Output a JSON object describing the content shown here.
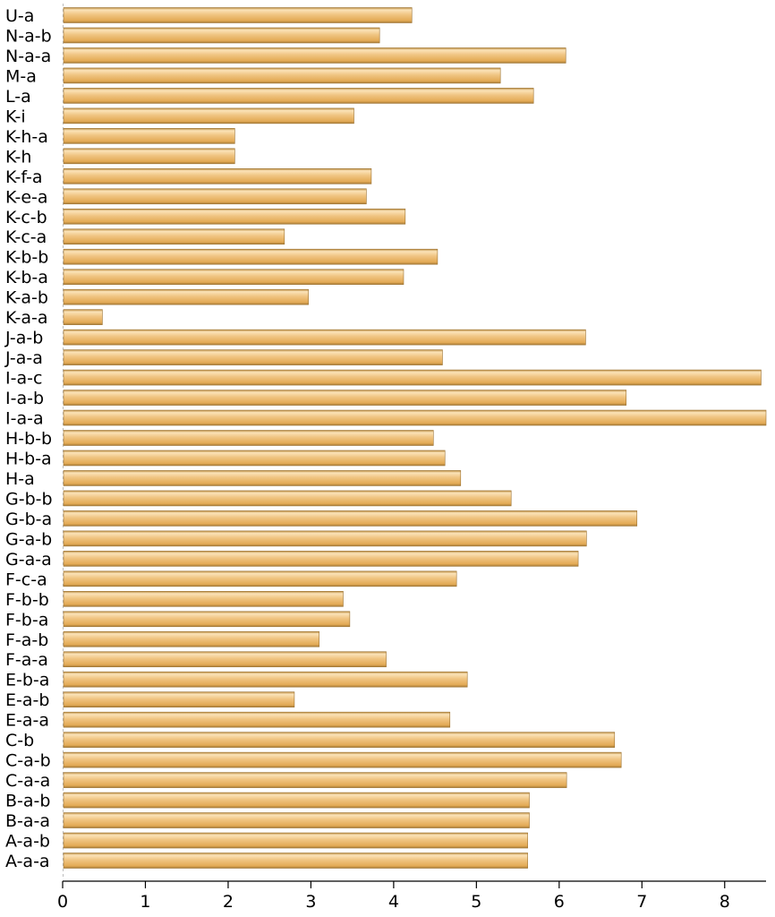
{
  "chart_data": {
    "type": "bar",
    "orientation": "horizontal",
    "title": "",
    "xlabel": "",
    "ylabel": "",
    "xlim": [
      0,
      8.5
    ],
    "xticks": [
      0,
      1,
      2,
      3,
      4,
      5,
      6,
      7,
      8
    ],
    "grid": false,
    "legend": "none",
    "bar_color": "#e8b56a",
    "bar_highlight": "#fbe3b8",
    "bar_shadow": "#b98a3f",
    "categories": [
      "A-a-a",
      "A-a-b",
      "B-a-a",
      "B-a-b",
      "C-a-a",
      "C-a-b",
      "C-b",
      "E-a-a",
      "E-a-b",
      "E-b-a",
      "F-a-a",
      "F-a-b",
      "F-b-a",
      "F-b-b",
      "F-c-a",
      "G-a-a",
      "G-a-b",
      "G-b-a",
      "G-b-b",
      "H-a",
      "H-b-a",
      "H-b-b",
      "I-a-a",
      "I-a-b",
      "I-a-c",
      "J-a-a",
      "J-a-b",
      "K-a-a",
      "K-a-b",
      "K-b-a",
      "K-b-b",
      "K-c-a",
      "K-c-b",
      "K-e-a",
      "K-f-a",
      "K-h",
      "K-h-a",
      "K-i",
      "L-a",
      "M-a",
      "N-a-a",
      "N-a-b",
      "U-a"
    ],
    "values": [
      5.62,
      5.62,
      5.64,
      5.64,
      6.09,
      6.75,
      6.67,
      4.68,
      2.8,
      4.89,
      3.91,
      3.1,
      3.47,
      3.39,
      4.76,
      6.23,
      6.33,
      6.94,
      5.42,
      4.81,
      4.62,
      4.48,
      8.5,
      6.81,
      8.44,
      4.59,
      6.32,
      0.48,
      2.97,
      4.12,
      4.53,
      2.68,
      4.14,
      3.67,
      3.73,
      2.08,
      2.08,
      3.52,
      5.69,
      5.29,
      6.08,
      3.83,
      4.22
    ]
  }
}
